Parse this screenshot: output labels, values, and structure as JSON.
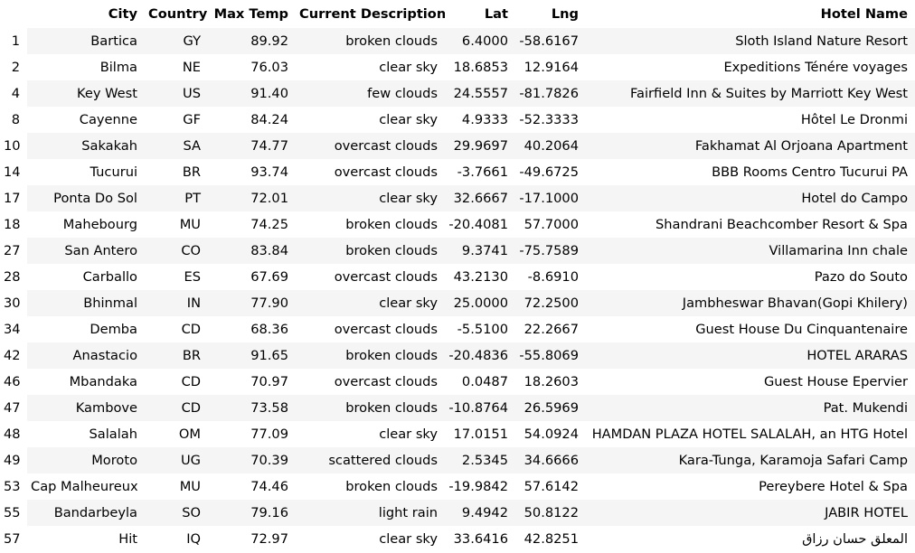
{
  "table": {
    "columns": [
      "",
      "City",
      "Country",
      "Max Temp",
      "Current Description",
      "Lat",
      "Lng",
      "Hotel Name"
    ],
    "rows": [
      [
        "1",
        "Bartica",
        "GY",
        "89.92",
        "broken clouds",
        "6.4000",
        "-58.6167",
        "Sloth Island Nature Resort"
      ],
      [
        "2",
        "Bilma",
        "NE",
        "76.03",
        "clear sky",
        "18.6853",
        "12.9164",
        "Expeditions Ténére voyages"
      ],
      [
        "4",
        "Key West",
        "US",
        "91.40",
        "few clouds",
        "24.5557",
        "-81.7826",
        "Fairfield Inn & Suites by Marriott Key West"
      ],
      [
        "8",
        "Cayenne",
        "GF",
        "84.24",
        "clear sky",
        "4.9333",
        "-52.3333",
        "Hôtel Le Dronmi"
      ],
      [
        "10",
        "Sakakah",
        "SA",
        "74.77",
        "overcast clouds",
        "29.9697",
        "40.2064",
        "Fakhamat Al Orjoana Apartment"
      ],
      [
        "14",
        "Tucurui",
        "BR",
        "93.74",
        "overcast clouds",
        "-3.7661",
        "-49.6725",
        "BBB Rooms Centro Tucurui PA"
      ],
      [
        "17",
        "Ponta Do Sol",
        "PT",
        "72.01",
        "clear sky",
        "32.6667",
        "-17.1000",
        "Hotel do Campo"
      ],
      [
        "18",
        "Mahebourg",
        "MU",
        "74.25",
        "broken clouds",
        "-20.4081",
        "57.7000",
        "Shandrani Beachcomber Resort & Spa"
      ],
      [
        "27",
        "San Antero",
        "CO",
        "83.84",
        "broken clouds",
        "9.3741",
        "-75.7589",
        "Villamarina Inn chale"
      ],
      [
        "28",
        "Carballo",
        "ES",
        "67.69",
        "overcast clouds",
        "43.2130",
        "-8.6910",
        "Pazo do Souto"
      ],
      [
        "30",
        "Bhinmal",
        "IN",
        "77.90",
        "clear sky",
        "25.0000",
        "72.2500",
        "Jambheswar Bhavan(Gopi Khilery)"
      ],
      [
        "34",
        "Demba",
        "CD",
        "68.36",
        "overcast clouds",
        "-5.5100",
        "22.2667",
        "Guest House Du Cinquantenaire"
      ],
      [
        "42",
        "Anastacio",
        "BR",
        "91.65",
        "broken clouds",
        "-20.4836",
        "-55.8069",
        "HOTEL ARARAS"
      ],
      [
        "46",
        "Mbandaka",
        "CD",
        "70.97",
        "overcast clouds",
        "0.0487",
        "18.2603",
        "Guest House Epervier"
      ],
      [
        "47",
        "Kambove",
        "CD",
        "73.58",
        "broken clouds",
        "-10.8764",
        "26.5969",
        "Pat. Mukendi"
      ],
      [
        "48",
        "Salalah",
        "OM",
        "77.09",
        "clear sky",
        "17.0151",
        "54.0924",
        "HAMDAN PLAZA HOTEL SALALAH, an HTG Hotel"
      ],
      [
        "49",
        "Moroto",
        "UG",
        "70.39",
        "scattered clouds",
        "2.5345",
        "34.6666",
        "Kara-Tunga, Karamoja Safari Camp"
      ],
      [
        "53",
        "Cap Malheureux",
        "MU",
        "74.46",
        "broken clouds",
        "-19.9842",
        "57.6142",
        "Pereybere Hotel & Spa"
      ],
      [
        "55",
        "Bandarbeyla",
        "SO",
        "79.16",
        "light rain",
        "9.4942",
        "50.8122",
        "JABIR HOTEL"
      ],
      [
        "57",
        "Hit",
        "IQ",
        "72.97",
        "clear sky",
        "33.6416",
        "42.8251",
        "المعلق حسان رزاق"
      ]
    ]
  }
}
